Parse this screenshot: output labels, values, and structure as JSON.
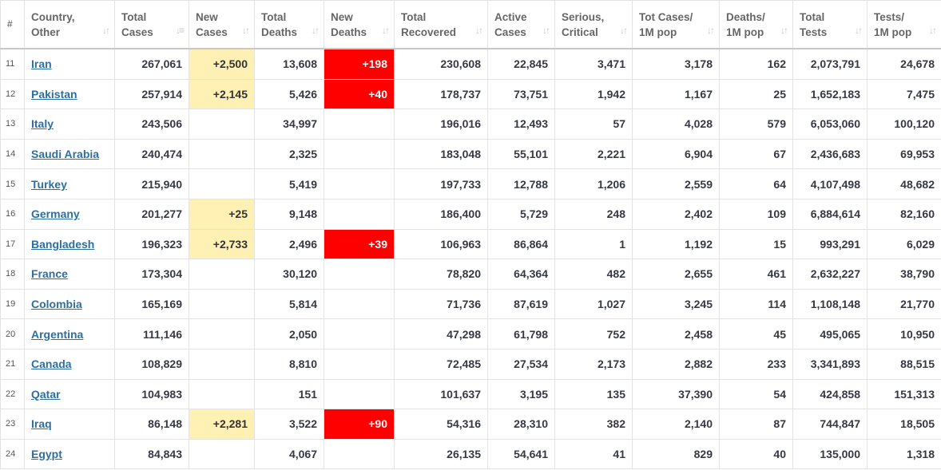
{
  "columns": [
    {
      "key": "rank",
      "label": "#",
      "sortable": false
    },
    {
      "key": "country",
      "label": "Country, Other",
      "sortable": true
    },
    {
      "key": "total_cases",
      "label": "Total Cases",
      "sortable": true,
      "active_sort": true
    },
    {
      "key": "new_cases",
      "label": "New Cases",
      "sortable": true
    },
    {
      "key": "total_deaths",
      "label": "Total Deaths",
      "sortable": true
    },
    {
      "key": "new_deaths",
      "label": "New Deaths",
      "sortable": true
    },
    {
      "key": "total_recovered",
      "label": "Total Recovered",
      "sortable": true
    },
    {
      "key": "active_cases",
      "label": "Active Cases",
      "sortable": true
    },
    {
      "key": "serious_critical",
      "label": "Serious, Critical",
      "sortable": true
    },
    {
      "key": "cases_per_1m",
      "label": "Tot Cases/ 1M pop",
      "sortable": true
    },
    {
      "key": "deaths_per_1m",
      "label": "Deaths/ 1M pop",
      "sortable": true
    },
    {
      "key": "total_tests",
      "label": "Total Tests",
      "sortable": true
    },
    {
      "key": "tests_per_1m",
      "label": "Tests/ 1M pop",
      "sortable": true
    }
  ],
  "colors": {
    "new_cases_highlight": "#fff0b3",
    "new_deaths_highlight": "#ff0000",
    "link": "#2b6fa3"
  },
  "rows": [
    {
      "rank": "11",
      "country": "Iran",
      "total_cases": "267,061",
      "new_cases": "+2,500",
      "total_deaths": "13,608",
      "new_deaths": "+198",
      "total_recovered": "230,608",
      "active_cases": "22,845",
      "serious_critical": "3,471",
      "cases_per_1m": "3,178",
      "deaths_per_1m": "162",
      "total_tests": "2,073,791",
      "tests_per_1m": "24,678"
    },
    {
      "rank": "12",
      "country": "Pakistan",
      "total_cases": "257,914",
      "new_cases": "+2,145",
      "total_deaths": "5,426",
      "new_deaths": "+40",
      "total_recovered": "178,737",
      "active_cases": "73,751",
      "serious_critical": "1,942",
      "cases_per_1m": "1,167",
      "deaths_per_1m": "25",
      "total_tests": "1,652,183",
      "tests_per_1m": "7,475"
    },
    {
      "rank": "13",
      "country": "Italy",
      "total_cases": "243,506",
      "new_cases": "",
      "total_deaths": "34,997",
      "new_deaths": "",
      "total_recovered": "196,016",
      "active_cases": "12,493",
      "serious_critical": "57",
      "cases_per_1m": "4,028",
      "deaths_per_1m": "579",
      "total_tests": "6,053,060",
      "tests_per_1m": "100,120"
    },
    {
      "rank": "14",
      "country": "Saudi Arabia",
      "total_cases": "240,474",
      "new_cases": "",
      "total_deaths": "2,325",
      "new_deaths": "",
      "total_recovered": "183,048",
      "active_cases": "55,101",
      "serious_critical": "2,221",
      "cases_per_1m": "6,904",
      "deaths_per_1m": "67",
      "total_tests": "2,436,683",
      "tests_per_1m": "69,953"
    },
    {
      "rank": "15",
      "country": "Turkey",
      "total_cases": "215,940",
      "new_cases": "",
      "total_deaths": "5,419",
      "new_deaths": "",
      "total_recovered": "197,733",
      "active_cases": "12,788",
      "serious_critical": "1,206",
      "cases_per_1m": "2,559",
      "deaths_per_1m": "64",
      "total_tests": "4,107,498",
      "tests_per_1m": "48,682"
    },
    {
      "rank": "16",
      "country": "Germany",
      "total_cases": "201,277",
      "new_cases": "+25",
      "total_deaths": "9,148",
      "new_deaths": "",
      "total_recovered": "186,400",
      "active_cases": "5,729",
      "serious_critical": "248",
      "cases_per_1m": "2,402",
      "deaths_per_1m": "109",
      "total_tests": "6,884,614",
      "tests_per_1m": "82,160"
    },
    {
      "rank": "17",
      "country": "Bangladesh",
      "total_cases": "196,323",
      "new_cases": "+2,733",
      "total_deaths": "2,496",
      "new_deaths": "+39",
      "total_recovered": "106,963",
      "active_cases": "86,864",
      "serious_critical": "1",
      "cases_per_1m": "1,192",
      "deaths_per_1m": "15",
      "total_tests": "993,291",
      "tests_per_1m": "6,029"
    },
    {
      "rank": "18",
      "country": "France",
      "total_cases": "173,304",
      "new_cases": "",
      "total_deaths": "30,120",
      "new_deaths": "",
      "total_recovered": "78,820",
      "active_cases": "64,364",
      "serious_critical": "482",
      "cases_per_1m": "2,655",
      "deaths_per_1m": "461",
      "total_tests": "2,632,227",
      "tests_per_1m": "38,790"
    },
    {
      "rank": "19",
      "country": "Colombia",
      "total_cases": "165,169",
      "new_cases": "",
      "total_deaths": "5,814",
      "new_deaths": "",
      "total_recovered": "71,736",
      "active_cases": "87,619",
      "serious_critical": "1,027",
      "cases_per_1m": "3,245",
      "deaths_per_1m": "114",
      "total_tests": "1,108,148",
      "tests_per_1m": "21,770"
    },
    {
      "rank": "20",
      "country": "Argentina",
      "total_cases": "111,146",
      "new_cases": "",
      "total_deaths": "2,050",
      "new_deaths": "",
      "total_recovered": "47,298",
      "active_cases": "61,798",
      "serious_critical": "752",
      "cases_per_1m": "2,458",
      "deaths_per_1m": "45",
      "total_tests": "495,065",
      "tests_per_1m": "10,950"
    },
    {
      "rank": "21",
      "country": "Canada",
      "total_cases": "108,829",
      "new_cases": "",
      "total_deaths": "8,810",
      "new_deaths": "",
      "total_recovered": "72,485",
      "active_cases": "27,534",
      "serious_critical": "2,173",
      "cases_per_1m": "2,882",
      "deaths_per_1m": "233",
      "total_tests": "3,341,893",
      "tests_per_1m": "88,515"
    },
    {
      "rank": "22",
      "country": "Qatar",
      "total_cases": "104,983",
      "new_cases": "",
      "total_deaths": "151",
      "new_deaths": "",
      "total_recovered": "101,637",
      "active_cases": "3,195",
      "serious_critical": "135",
      "cases_per_1m": "37,390",
      "deaths_per_1m": "54",
      "total_tests": "424,858",
      "tests_per_1m": "151,313"
    },
    {
      "rank": "23",
      "country": "Iraq",
      "total_cases": "86,148",
      "new_cases": "+2,281",
      "total_deaths": "3,522",
      "new_deaths": "+90",
      "total_recovered": "54,316",
      "active_cases": "28,310",
      "serious_critical": "382",
      "cases_per_1m": "2,140",
      "deaths_per_1m": "87",
      "total_tests": "744,847",
      "tests_per_1m": "18,505"
    },
    {
      "rank": "24",
      "country": "Egypt",
      "total_cases": "84,843",
      "new_cases": "",
      "total_deaths": "4,067",
      "new_deaths": "",
      "total_recovered": "26,135",
      "active_cases": "54,641",
      "serious_critical": "41",
      "cases_per_1m": "829",
      "deaths_per_1m": "40",
      "total_tests": "135,000",
      "tests_per_1m": "1,318"
    }
  ]
}
